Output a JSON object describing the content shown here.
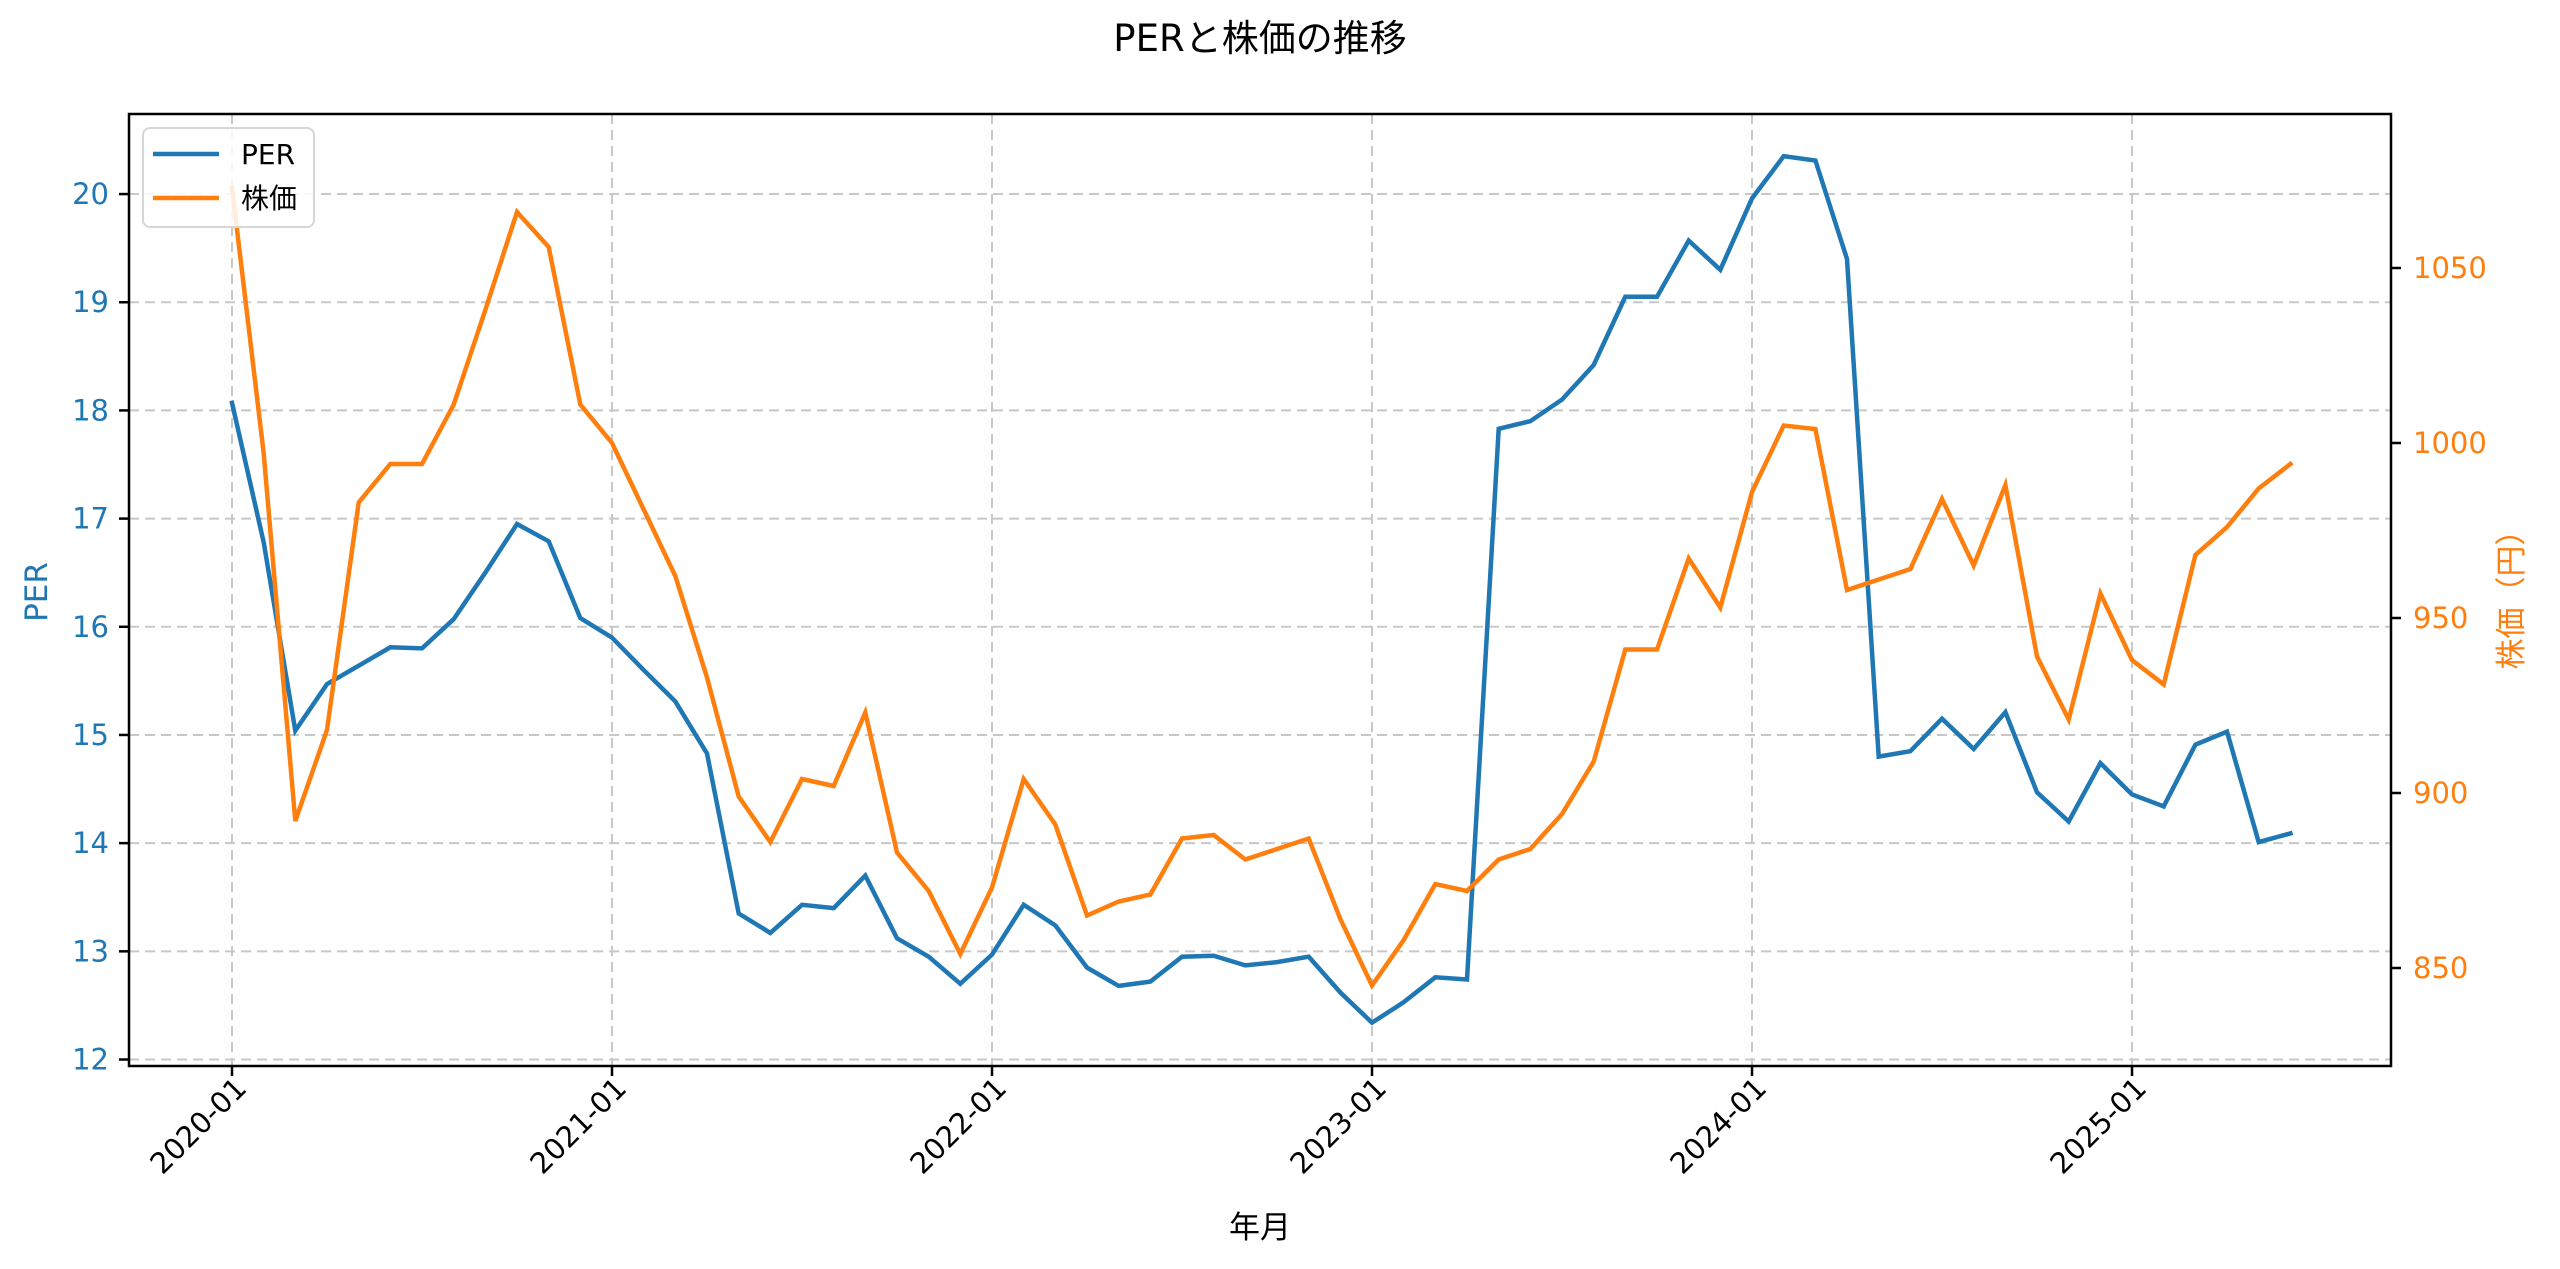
{
  "chart_data": {
    "type": "line",
    "title": "PERと株価の推移",
    "xlabel": "年月",
    "ylabel_left": "PER",
    "ylabel_right": "株価（円）",
    "x_tick_labels": [
      "2020-01",
      "2021-01",
      "2022-01",
      "2023-01",
      "2024-01",
      "2025-01"
    ],
    "left_ticks": [
      12,
      13,
      14,
      15,
      16,
      17,
      18,
      19,
      20
    ],
    "right_ticks": [
      850,
      900,
      950,
      1000,
      1050
    ],
    "ylim_left": [
      11.94,
      20.74
    ],
    "ylim_right": [
      822,
      1094
    ],
    "grid": true,
    "legend_position": "upper left",
    "x": [
      "2020-01",
      "2020-02",
      "2020-03",
      "2020-04",
      "2020-05",
      "2020-06",
      "2020-07",
      "2020-08",
      "2020-09",
      "2020-10",
      "2020-11",
      "2020-12",
      "2021-01",
      "2021-02",
      "2021-03",
      "2021-04",
      "2021-05",
      "2021-06",
      "2021-07",
      "2021-08",
      "2021-09",
      "2021-10",
      "2021-11",
      "2021-12",
      "2022-01",
      "2022-02",
      "2022-03",
      "2022-04",
      "2022-05",
      "2022-06",
      "2022-07",
      "2022-08",
      "2022-09",
      "2022-10",
      "2022-11",
      "2022-12",
      "2023-01",
      "2023-02",
      "2023-03",
      "2023-04",
      "2023-05",
      "2023-06",
      "2023-07",
      "2023-08",
      "2023-09",
      "2023-10",
      "2023-11",
      "2023-12",
      "2024-01",
      "2024-02",
      "2024-03",
      "2024-04",
      "2024-05",
      "2024-06",
      "2024-07",
      "2024-08",
      "2024-09",
      "2024-10",
      "2024-11",
      "2024-12",
      "2025-01",
      "2025-02",
      "2025-03",
      "2025-04",
      "2025-05",
      "2025-06"
    ],
    "series": [
      {
        "name": "PER",
        "axis": "left",
        "color": "#1f77b4",
        "values": [
          18.07,
          16.78,
          15.04,
          15.47,
          15.64,
          15.81,
          15.8,
          16.07,
          16.5,
          16.95,
          16.79,
          16.08,
          15.9,
          15.6,
          15.31,
          14.83,
          13.35,
          13.17,
          13.43,
          13.4,
          13.7,
          13.12,
          12.95,
          12.7,
          12.97,
          13.43,
          13.24,
          12.85,
          12.68,
          12.72,
          12.95,
          12.96,
          12.87,
          12.9,
          12.95,
          12.62,
          12.34,
          12.53,
          12.76,
          12.74,
          17.83,
          17.9,
          18.1,
          18.42,
          19.05,
          19.05,
          19.57,
          19.3,
          19.96,
          20.35,
          20.31,
          19.4,
          14.8,
          14.85,
          15.15,
          14.87,
          15.21,
          14.47,
          14.2,
          14.74,
          14.45,
          14.34,
          14.91,
          15.03,
          14.01,
          14.09
        ]
      },
      {
        "name": "株価",
        "axis": "right",
        "color": "#ff7f0e",
        "values": [
          1073,
          997,
          892,
          918,
          983,
          994,
          994,
          1011,
          1038,
          1066,
          1056,
          1011,
          1000,
          981,
          962,
          933,
          899,
          886,
          904,
          902,
          923,
          883,
          872,
          854,
          873,
          904,
          891,
          865,
          869,
          871,
          887,
          888,
          881,
          884,
          887,
          864,
          845,
          858,
          874,
          872,
          881,
          884,
          894,
          909,
          941,
          941,
          967,
          953,
          986,
          1005,
          1004,
          958,
          961,
          964,
          984,
          965,
          988,
          939,
          921,
          957,
          938,
          931,
          968,
          976,
          987,
          994
        ]
      }
    ]
  },
  "legend": {
    "items": [
      {
        "label": "PER",
        "color": "#1f77b4"
      },
      {
        "label": "株価",
        "color": "#ff7f0e"
      }
    ]
  },
  "colors": {
    "per": "#1f77b4",
    "price": "#ff7f0e",
    "grid": "#c8c8c8"
  }
}
